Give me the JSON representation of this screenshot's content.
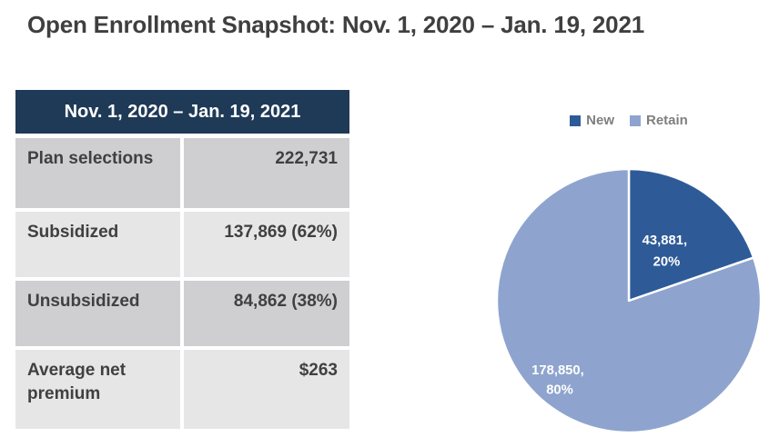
{
  "page": {
    "title": "Open Enrollment Snapshot: Nov. 1, 2020 – Jan. 19, 2021"
  },
  "table": {
    "header": "Nov. 1, 2020 – Jan. 19, 2021",
    "rows": [
      {
        "label": "Plan selections",
        "value": "222,731"
      },
      {
        "label": "Subsidized",
        "value": "137,869 (62%)"
      },
      {
        "label": "Unsubsidized",
        "value": "84,862 (38%)"
      },
      {
        "label": "Average net premium",
        "value": "$263"
      }
    ]
  },
  "chart_data": {
    "type": "pie",
    "categories": [
      "New",
      "Retain"
    ],
    "values": [
      43881,
      178850
    ],
    "percent_labels": [
      "20%",
      "80%"
    ],
    "data_labels": [
      [
        "43,881,",
        "20%"
      ],
      [
        "178,850,",
        "80%"
      ]
    ],
    "colors": [
      "#2E5B97",
      "#8EA4CE"
    ],
    "legend_position": "top",
    "start_angle_deg": 0,
    "direction": "clockwise"
  },
  "colors": {
    "table_header_bg": "#1F3A57",
    "row_dark": "#CFCFD1",
    "row_light": "#E6E6E7",
    "title_text": "#3F3F3F",
    "legend_text": "#7F7F7F"
  }
}
